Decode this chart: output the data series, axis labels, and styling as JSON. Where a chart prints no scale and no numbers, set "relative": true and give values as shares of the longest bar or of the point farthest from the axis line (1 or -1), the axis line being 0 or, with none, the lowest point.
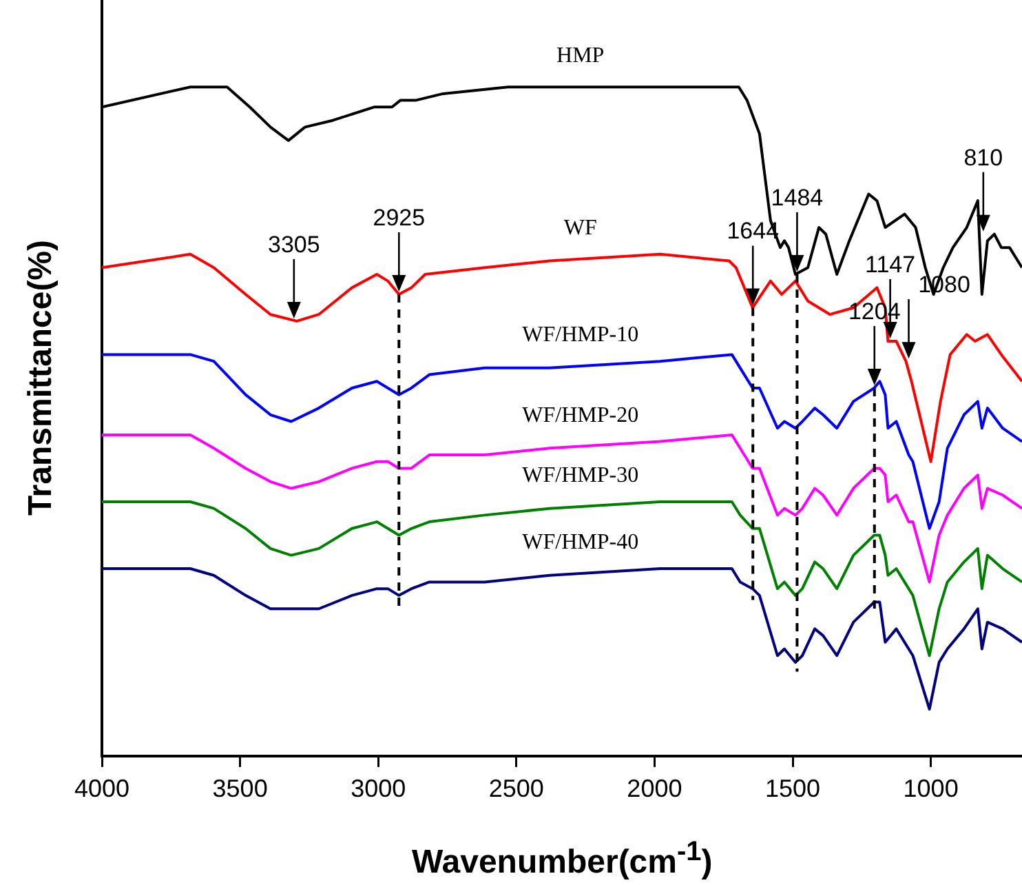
{
  "chart_data": {
    "type": "line",
    "xlabel": "Wavenumber(cm$^{-1}$)",
    "ylabel": "Transmittance(%)",
    "relative": true,
    "xlim": [
      4000,
      670
    ],
    "xticks": [
      4000,
      3500,
      3000,
      2500,
      2000,
      1500,
      1000
    ],
    "series": [
      {
        "name": "HMP",
        "color": "#000000",
        "x": [
          4000,
          3680,
          3547,
          3465,
          3390,
          3325,
          3265,
          3165,
          3015,
          2980,
          2950,
          2920,
          2865,
          2765,
          2530,
          2380,
          1980,
          1695,
          1665,
          1620,
          1580,
          1545,
          1530,
          1515,
          1490,
          1445,
          1405,
          1380,
          1340,
          1295,
          1225,
          1195,
          1165,
          1095,
          1055,
          1020,
          990,
          955,
          920,
          870,
          830,
          815,
          795,
          770,
          745,
          715,
          670
        ],
        "values": [
          0.97,
          1,
          1,
          0.97,
          0.94,
          0.92,
          0.94,
          0.95,
          0.97,
          0.97,
          0.97,
          0.98,
          0.98,
          0.99,
          1,
          1,
          1,
          1,
          0.98,
          0.93,
          0.8,
          0.76,
          0.77,
          0.76,
          0.72,
          0.73,
          0.79,
          0.78,
          0.72,
          0.77,
          0.84,
          0.83,
          0.79,
          0.81,
          0.79,
          0.73,
          0.69,
          0.73,
          0.76,
          0.79,
          0.83,
          0.69,
          0.77,
          0.78,
          0.76,
          0.76,
          0.73
        ]
      },
      {
        "name": "WF",
        "color": "#ff0000",
        "x": [
          4000,
          3680,
          3595,
          3480,
          3390,
          3295,
          3215,
          3095,
          3005,
          2965,
          2925,
          2880,
          2830,
          2615,
          2380,
          1980,
          1730,
          1705,
          1645,
          1580,
          1540,
          1490,
          1445,
          1365,
          1280,
          1195,
          1165,
          1155,
          1125,
          1090,
          1070,
          1000,
          965,
          930,
          870,
          840,
          795,
          745,
          670
        ],
        "values": [
          0.73,
          0.75,
          0.73,
          0.69,
          0.66,
          0.65,
          0.66,
          0.7,
          0.72,
          0.71,
          0.69,
          0.7,
          0.72,
          0.73,
          0.74,
          0.75,
          0.74,
          0.73,
          0.67,
          0.71,
          0.69,
          0.71,
          0.68,
          0.66,
          0.67,
          0.7,
          0.67,
          0.62,
          0.62,
          0.59,
          0.56,
          0.44,
          0.53,
          0.6,
          0.63,
          0.62,
          0.63,
          0.6,
          0.56
        ]
      },
      {
        "name": "WF/HMP-10",
        "color": "#0000ff",
        "x": [
          4000,
          3680,
          3595,
          3480,
          3390,
          3315,
          3215,
          3095,
          3005,
          2965,
          2925,
          2880,
          2815,
          2615,
          2380,
          1980,
          1720,
          1690,
          1645,
          1620,
          1555,
          1530,
          1490,
          1465,
          1420,
          1390,
          1340,
          1280,
          1205,
          1185,
          1165,
          1155,
          1125,
          1080,
          1065,
          1005,
          970,
          940,
          880,
          830,
          815,
          795,
          740,
          670
        ],
        "values": [
          0.6,
          0.6,
          0.59,
          0.54,
          0.51,
          0.5,
          0.52,
          0.55,
          0.56,
          0.55,
          0.54,
          0.55,
          0.57,
          0.58,
          0.58,
          0.59,
          0.6,
          0.58,
          0.55,
          0.55,
          0.49,
          0.5,
          0.49,
          0.5,
          0.52,
          0.51,
          0.49,
          0.53,
          0.55,
          0.56,
          0.54,
          0.49,
          0.5,
          0.45,
          0.44,
          0.34,
          0.38,
          0.46,
          0.51,
          0.53,
          0.49,
          0.52,
          0.49,
          0.47
        ]
      },
      {
        "name": "WF/HMP-20",
        "color": "#ff00ff",
        "x": [
          4000,
          3680,
          3595,
          3480,
          3390,
          3315,
          3215,
          3095,
          3005,
          2965,
          2925,
          2880,
          2815,
          2615,
          2380,
          1980,
          1720,
          1690,
          1645,
          1620,
          1555,
          1530,
          1490,
          1465,
          1420,
          1390,
          1340,
          1280,
          1205,
          1185,
          1165,
          1155,
          1125,
          1080,
          1065,
          1005,
          970,
          940,
          880,
          830,
          815,
          795,
          740,
          670
        ],
        "values": [
          0.48,
          0.48,
          0.46,
          0.43,
          0.41,
          0.4,
          0.41,
          0.43,
          0.44,
          0.44,
          0.43,
          0.43,
          0.45,
          0.45,
          0.46,
          0.47,
          0.48,
          0.46,
          0.43,
          0.43,
          0.36,
          0.37,
          0.36,
          0.37,
          0.4,
          0.39,
          0.36,
          0.4,
          0.43,
          0.43,
          0.42,
          0.38,
          0.39,
          0.35,
          0.35,
          0.26,
          0.33,
          0.36,
          0.4,
          0.42,
          0.37,
          0.4,
          0.39,
          0.37
        ]
      },
      {
        "name": "WF/HMP-30",
        "color": "#008000",
        "x": [
          4000,
          3680,
          3595,
          3480,
          3390,
          3315,
          3215,
          3095,
          3005,
          2965,
          2925,
          2880,
          2815,
          2615,
          2380,
          1980,
          1720,
          1690,
          1645,
          1620,
          1555,
          1530,
          1490,
          1465,
          1420,
          1390,
          1340,
          1280,
          1205,
          1185,
          1165,
          1155,
          1125,
          1080,
          1065,
          1005,
          970,
          940,
          880,
          830,
          815,
          795,
          740,
          670
        ],
        "values": [
          0.38,
          0.38,
          0.37,
          0.34,
          0.31,
          0.3,
          0.31,
          0.34,
          0.35,
          0.34,
          0.33,
          0.34,
          0.35,
          0.36,
          0.37,
          0.38,
          0.38,
          0.36,
          0.34,
          0.34,
          0.25,
          0.26,
          0.24,
          0.25,
          0.29,
          0.28,
          0.25,
          0.3,
          0.33,
          0.33,
          0.3,
          0.27,
          0.28,
          0.25,
          0.24,
          0.15,
          0.22,
          0.26,
          0.29,
          0.31,
          0.25,
          0.3,
          0.28,
          0.26
        ]
      },
      {
        "name": "WF/HMP-40",
        "color": "#000080",
        "x": [
          4000,
          3680,
          3595,
          3480,
          3390,
          3315,
          3215,
          3095,
          3005,
          2965,
          2925,
          2880,
          2815,
          2615,
          2380,
          1980,
          1720,
          1690,
          1645,
          1620,
          1555,
          1530,
          1490,
          1465,
          1420,
          1390,
          1340,
          1280,
          1205,
          1185,
          1165,
          1125,
          1080,
          1065,
          1005,
          970,
          940,
          880,
          830,
          815,
          795,
          740,
          670
        ],
        "values": [
          0.28,
          0.28,
          0.27,
          0.24,
          0.22,
          0.22,
          0.22,
          0.24,
          0.25,
          0.25,
          0.24,
          0.25,
          0.26,
          0.26,
          0.27,
          0.28,
          0.28,
          0.26,
          0.25,
          0.24,
          0.15,
          0.16,
          0.14,
          0.15,
          0.19,
          0.18,
          0.15,
          0.2,
          0.23,
          0.23,
          0.17,
          0.19,
          0.16,
          0.15,
          0.07,
          0.14,
          0.16,
          0.19,
          0.22,
          0.16,
          0.2,
          0.19,
          0.17
        ]
      }
    ],
    "annotations": [
      {
        "text": "3305",
        "x": 3305,
        "y": 0.65
      },
      {
        "text": "2925",
        "x": 2925,
        "y": 0.69
      },
      {
        "text": "1644",
        "x": 1644,
        "y": 0.67
      },
      {
        "text": "1484",
        "x": 1484,
        "y": 0.72
      },
      {
        "text": "810",
        "x": 810,
        "y": 0.78
      },
      {
        "text": "1147",
        "x": 1147,
        "y": 0.62
      },
      {
        "text": "1080",
        "x": 1080,
        "y": 0.59
      },
      {
        "text": "1204",
        "x": 1204,
        "y": 0.55
      }
    ],
    "ref_lines": [
      {
        "axis": "x",
        "value": 2925,
        "line_style": "dashed"
      },
      {
        "axis": "x",
        "value": 1644,
        "line_style": "dashed"
      },
      {
        "axis": "x",
        "value": 1484,
        "line_style": "dashed"
      },
      {
        "axis": "x",
        "value": 1204,
        "line_style": "dashed"
      }
    ]
  }
}
